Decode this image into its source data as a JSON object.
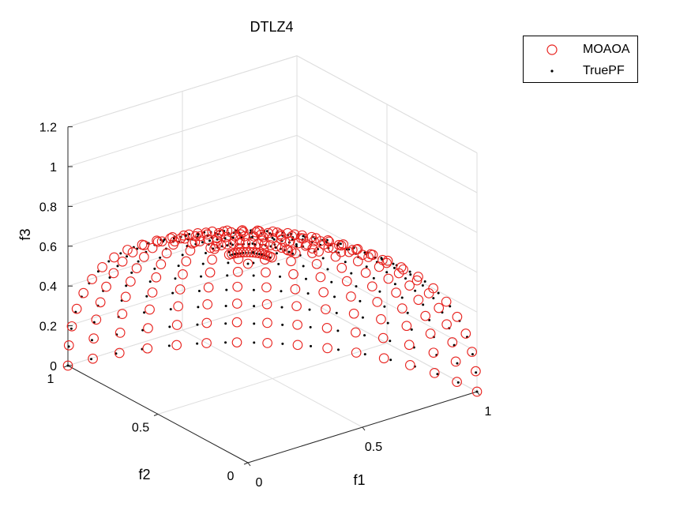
{
  "chart_data": {
    "type": "scatter3d",
    "title": "DTLZ4",
    "xlabel": "f1",
    "ylabel": "f2",
    "zlabel": "f3",
    "xlim": [
      0,
      1
    ],
    "ylim": [
      0,
      1
    ],
    "zlim": [
      0,
      1.2
    ],
    "xticks": [
      "0",
      "0.5",
      "1"
    ],
    "yticks": [
      "0",
      "0.5",
      "1"
    ],
    "zticks": [
      "0",
      "0.2",
      "0.4",
      "0.6",
      "0.8",
      "1",
      "1.2"
    ],
    "grid": true,
    "legend_position": "top-right",
    "surface": "first octant of the unit sphere: f1^2 + f2^2 + f3^2 = 1",
    "series": [
      {
        "name": "MOAOA",
        "marker": "open-circle",
        "color": "#e8231f",
        "sampling": "uniform grid on the unit-sphere octant, 15 steps in elevation and azimuth"
      },
      {
        "name": "TruePF",
        "marker": "dot",
        "color": "#000000",
        "sampling": "uniform grid on the unit-sphere octant, 16 steps in elevation and azimuth"
      }
    ]
  }
}
